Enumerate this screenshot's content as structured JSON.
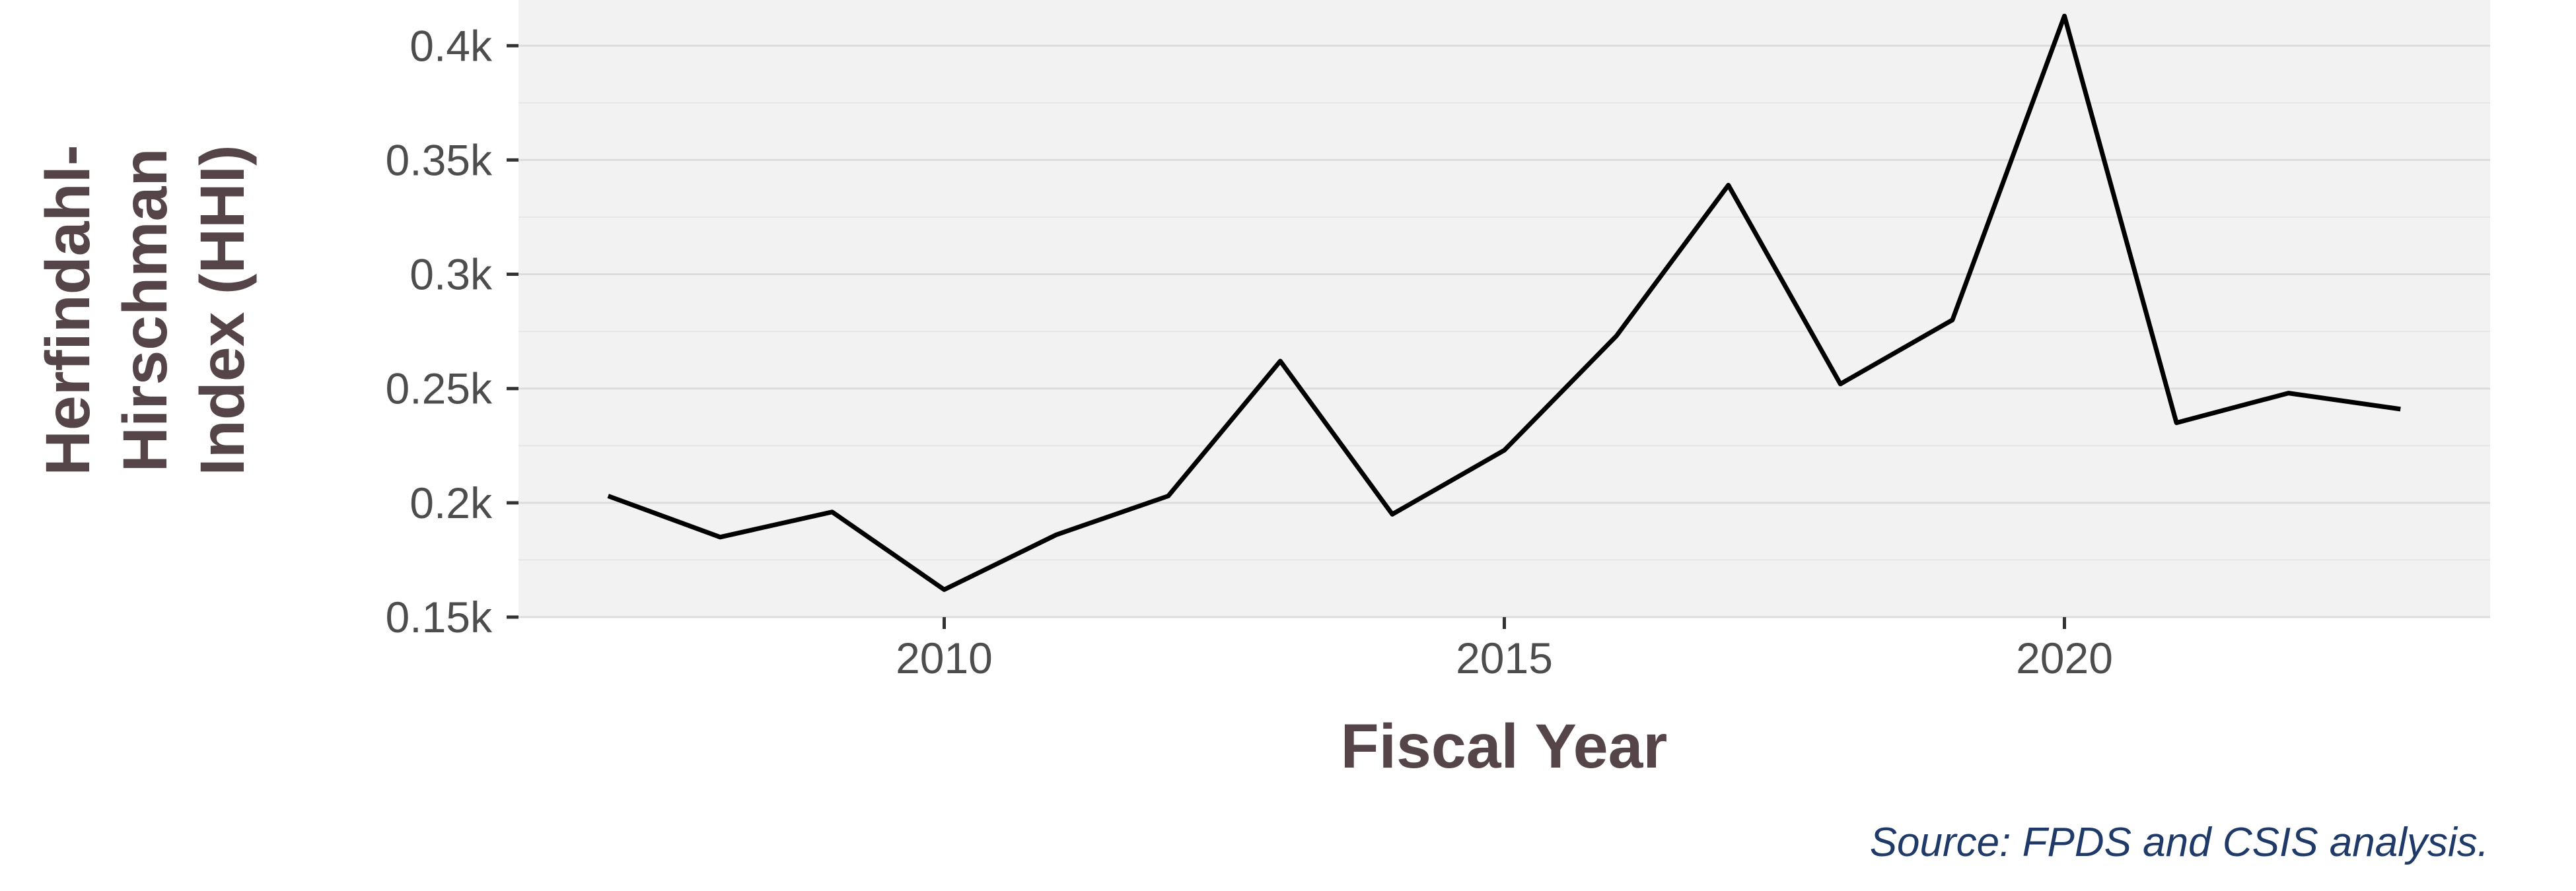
{
  "chart_data": {
    "type": "line",
    "xlabel": "Fiscal Year",
    "ylabel": "Herfindahl-\nHirschman\nIndex (HHI)",
    "caption": "Source: FPDS and CSIS analysis.",
    "xlim": [
      2006.2,
      2023.8
    ],
    "ylim": [
      0.15,
      0.42
    ],
    "x_ticks": [
      2010,
      2015,
      2020
    ],
    "x_tick_labels": [
      "2010",
      "2015",
      "2020"
    ],
    "y_ticks": [
      0.15,
      0.2,
      0.25,
      0.3,
      0.35,
      0.4
    ],
    "y_tick_labels": [
      "0.15k",
      "0.2k",
      "0.25k",
      "0.3k",
      "0.35k",
      "0.4k"
    ],
    "grid": true,
    "background": "#f2f2f2",
    "line_color": "#000000",
    "series": [
      {
        "x": [
          2007,
          2008,
          2009,
          2010,
          2011,
          2012,
          2013,
          2014,
          2015,
          2016,
          2017,
          2018,
          2019,
          2020,
          2021,
          2022,
          2023
        ],
        "values": [
          0.203,
          0.185,
          0.196,
          0.162,
          0.186,
          0.203,
          0.262,
          0.195,
          0.223,
          0.273,
          0.339,
          0.252,
          0.28,
          0.413,
          0.235,
          0.248,
          0.241
        ]
      }
    ]
  }
}
